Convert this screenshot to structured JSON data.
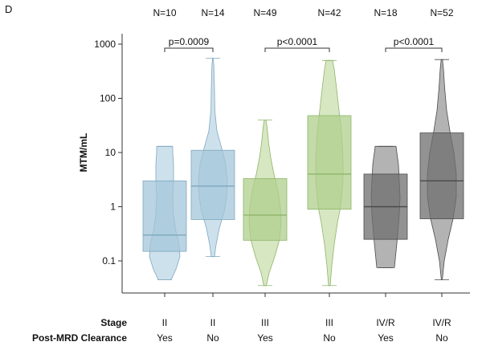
{
  "panel_label": "D",
  "chart_data": {
    "type": "violin",
    "ylabel": "MTM/mL",
    "yscale": "log",
    "ylim": [
      0.04,
      1500
    ],
    "yticks": [
      0.1,
      1,
      10,
      100,
      1000
    ],
    "ytick_labels": [
      "0.1",
      "1",
      "10",
      "100",
      "1000"
    ],
    "row_labels": [
      "Stage",
      "Post-MRD Clearance"
    ],
    "groups": [
      {
        "stage": "II",
        "clearance": "Yes",
        "n_label": "N=10",
        "fill": "#bcd7e6",
        "box": "#a3c6d9",
        "stroke": "#7fa7bd",
        "min": 0.045,
        "q1": 0.15,
        "median": 0.3,
        "q3": 3.0,
        "max": 13,
        "violin": [
          [
            0.045,
            0.4
          ],
          [
            0.07,
            0.7
          ],
          [
            0.12,
            0.95
          ],
          [
            0.2,
            0.9
          ],
          [
            0.35,
            0.7
          ],
          [
            0.7,
            0.55
          ],
          [
            1.5,
            0.5
          ],
          [
            3,
            0.55
          ],
          [
            6,
            0.55
          ],
          [
            10,
            0.5
          ],
          [
            13,
            0.5
          ]
        ]
      },
      {
        "stage": "II",
        "clearance": "No",
        "n_label": "N=14",
        "fill": "#bcd7e6",
        "box": "#a3c6d9",
        "stroke": "#7fa7bd",
        "min": 0.12,
        "q1": 0.58,
        "median": 2.4,
        "q3": 11,
        "max": 550,
        "violin": [
          [
            0.12,
            0.1
          ],
          [
            0.2,
            0.2
          ],
          [
            0.4,
            0.4
          ],
          [
            0.8,
            0.7
          ],
          [
            1.5,
            0.85
          ],
          [
            3,
            0.9
          ],
          [
            6,
            0.8
          ],
          [
            12,
            0.55
          ],
          [
            25,
            0.25
          ],
          [
            60,
            0.12
          ],
          [
            150,
            0.1
          ],
          [
            400,
            0.06
          ],
          [
            550,
            0.02
          ]
        ]
      },
      {
        "stage": "III",
        "clearance": "Yes",
        "n_label": "N=49",
        "fill": "#c8dfae",
        "box": "#afcf8c",
        "stroke": "#8fb56a",
        "min": 0.035,
        "q1": 0.24,
        "median": 0.7,
        "q3": 3.3,
        "max": 40,
        "violin": [
          [
            0.035,
            0.08
          ],
          [
            0.06,
            0.25
          ],
          [
            0.12,
            0.6
          ],
          [
            0.25,
            0.9
          ],
          [
            0.5,
            1.0
          ],
          [
            1,
            0.95
          ],
          [
            2,
            0.8
          ],
          [
            4,
            0.55
          ],
          [
            8,
            0.35
          ],
          [
            15,
            0.22
          ],
          [
            30,
            0.12
          ],
          [
            40,
            0.05
          ]
        ]
      },
      {
        "stage": "III",
        "clearance": "No",
        "n_label": "N=42",
        "fill": "#c8dfae",
        "box": "#afcf8c",
        "stroke": "#8fb56a",
        "min": 0.035,
        "q1": 0.9,
        "median": 4.0,
        "q3": 48,
        "max": 500,
        "violin": [
          [
            0.035,
            0.05
          ],
          [
            0.08,
            0.15
          ],
          [
            0.2,
            0.3
          ],
          [
            0.5,
            0.5
          ],
          [
            1,
            0.7
          ],
          [
            3,
            0.85
          ],
          [
            8,
            0.85
          ],
          [
            25,
            0.75
          ],
          [
            60,
            0.6
          ],
          [
            150,
            0.45
          ],
          [
            350,
            0.3
          ],
          [
            500,
            0.2
          ]
        ]
      },
      {
        "stage": "IV/R",
        "clearance": "Yes",
        "n_label": "N=18",
        "fill": "#9a9a9a",
        "box": "#6e6e6e",
        "stroke": "#4a4a4a",
        "min": 0.075,
        "q1": 0.25,
        "median": 1.0,
        "q3": 4.0,
        "max": 13,
        "violin": [
          [
            0.075,
            0.55
          ],
          [
            0.15,
            0.65
          ],
          [
            0.3,
            0.75
          ],
          [
            0.7,
            0.85
          ],
          [
            1.5,
            0.9
          ],
          [
            3,
            0.85
          ],
          [
            6,
            0.8
          ],
          [
            10,
            0.7
          ],
          [
            13,
            0.65
          ]
        ]
      },
      {
        "stage": "IV/R",
        "clearance": "No",
        "n_label": "N=52",
        "fill": "#9a9a9a",
        "box": "#6e6e6e",
        "stroke": "#4a4a4a",
        "min": 0.045,
        "q1": 0.6,
        "median": 3.0,
        "q3": 23,
        "max": 520,
        "violin": [
          [
            0.045,
            0.03
          ],
          [
            0.1,
            0.15
          ],
          [
            0.25,
            0.4
          ],
          [
            0.6,
            0.7
          ],
          [
            1.5,
            0.9
          ],
          [
            4,
            0.9
          ],
          [
            10,
            0.75
          ],
          [
            25,
            0.5
          ],
          [
            60,
            0.3
          ],
          [
            150,
            0.18
          ],
          [
            350,
            0.1
          ],
          [
            520,
            0.04
          ]
        ]
      }
    ],
    "comparisons": [
      {
        "from": 0,
        "to": 1,
        "label": "p=0.0009"
      },
      {
        "from": 2,
        "to": 3,
        "label": "p<0.0001"
      },
      {
        "from": 4,
        "to": 5,
        "label": "p<0.0001"
      }
    ]
  }
}
